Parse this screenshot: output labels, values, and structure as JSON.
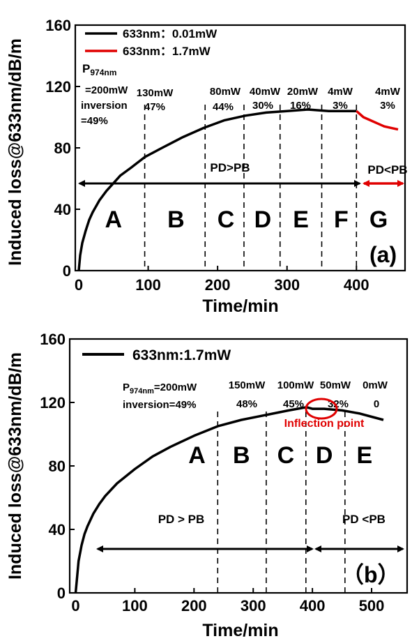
{
  "chart_data": [
    {
      "type": "line",
      "xlabel": "Time/min",
      "ylabel": "Induced loss@633nm/dB/m",
      "xlim": [
        -5,
        470
      ],
      "ylim": [
        0,
        160
      ],
      "xticks": [
        0,
        100,
        200,
        300,
        400
      ],
      "yticks": [
        0,
        40,
        80,
        120,
        160
      ],
      "panel_label": "(a)",
      "legend": [
        {
          "label": "633nm：0.01mW",
          "color": "#000000"
        },
        {
          "label": "633nm：1.7mW",
          "color": "#e00000"
        }
      ],
      "legend_position": "top-left",
      "series": [
        {
          "name": "633nm：0.01mW",
          "color": "#000000",
          "x": [
            0,
            2,
            5,
            10,
            15,
            20,
            30,
            40,
            50,
            60,
            75,
            95,
            120,
            150,
            180,
            210,
            240,
            270,
            300,
            330,
            360,
            380,
            400
          ],
          "y": [
            0,
            10,
            18,
            26,
            33,
            38,
            46,
            52,
            57,
            62,
            67,
            74,
            80,
            87,
            93,
            98,
            101,
            103,
            104,
            105,
            104,
            104,
            104
          ]
        },
        {
          "name": "633nm：1.7mW",
          "color": "#e00000",
          "x": [
            400,
            410,
            420,
            430,
            440,
            450,
            460
          ],
          "y": [
            104,
            100,
            98,
            96,
            94,
            93,
            92
          ]
        }
      ],
      "dividers_x": [
        95,
        182,
        238,
        290,
        350,
        400
      ],
      "regions": [
        "A",
        "B",
        "C",
        "D",
        "E",
        "F",
        "G"
      ],
      "region_x": [
        50,
        140,
        212,
        265,
        320,
        378,
        432
      ],
      "annotations": {
        "p974_label": "P",
        "p974_sub": "974nm",
        "first_pump": "=200mW",
        "first_inversion": "inversion",
        "first_inversion_value": "=49%",
        "pumps": [
          "130mW",
          "80mW",
          "40mW",
          "20mW",
          "4mW",
          "4mW"
        ],
        "inversions": [
          "47%",
          "44%",
          "30%",
          "16%",
          "3%",
          "3%"
        ],
        "pd_gt_pb": "PD>PB",
        "pd_lt_pb": "PD<PB",
        "pd_lt_pb_color": "#e00000"
      }
    },
    {
      "type": "line",
      "xlabel": "Time/min",
      "ylabel": "Induced loss@633nm/dB/m",
      "xlim": [
        -10,
        560
      ],
      "ylim": [
        0,
        160
      ],
      "xticks": [
        0,
        100,
        200,
        300,
        400,
        500
      ],
      "yticks": [
        0,
        40,
        80,
        120,
        160
      ],
      "panel_label": "（b）",
      "legend": [
        {
          "label": "633nm:1.7mW",
          "color": "#000000"
        }
      ],
      "legend_position": "top-left",
      "series": [
        {
          "name": "633nm:1.7mW",
          "color": "#000000",
          "x": [
            0,
            2,
            5,
            10,
            15,
            20,
            30,
            40,
            50,
            70,
            100,
            130,
            160,
            200,
            240,
            280,
            320,
            360,
            390,
            400,
            420,
            450,
            480,
            500,
            520
          ],
          "y": [
            0,
            8,
            20,
            30,
            37,
            42,
            50,
            56,
            61,
            69,
            78,
            86,
            92,
            99,
            105,
            109,
            112,
            115,
            117,
            116,
            116,
            115,
            113,
            111,
            109
          ]
        }
      ],
      "dividers_x": [
        240,
        322,
        389,
        455
      ],
      "regions": [
        "A",
        "B",
        "C",
        "D",
        "E"
      ],
      "region_x": [
        205,
        280,
        355,
        420,
        488
      ],
      "annotations": {
        "p974_label": "P",
        "p974_sub": "974nm",
        "first_pump": "=200mW",
        "first_inversion": "inversion=49%",
        "pumps": [
          "150mW",
          "100mW",
          "50mW",
          "0mW"
        ],
        "inversions": [
          "48%",
          "45%",
          "32%",
          "0"
        ],
        "inflection_label": "Inflection point",
        "inflection_color": "#e00000",
        "pd_gt_pb": "PD > PB",
        "pd_lt_pb": "PD <PB",
        "pd_lt_pb_color": "#e00000"
      }
    }
  ]
}
